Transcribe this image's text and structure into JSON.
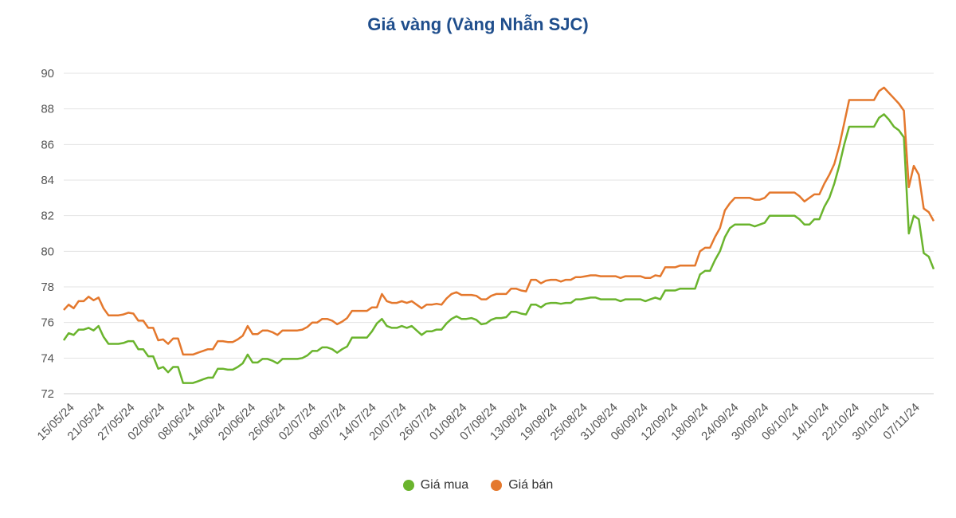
{
  "chart_data": {
    "type": "line",
    "title": "Giá vàng (Vàng Nhẫn SJC)",
    "xlabel": "",
    "ylabel": "",
    "ylim": [
      72,
      90
    ],
    "yticks": [
      72,
      74,
      76,
      78,
      80,
      82,
      84,
      86,
      88,
      90
    ],
    "grid": true,
    "legend_position": "bottom",
    "x_tick_labels": [
      "15/05/24",
      "21/05/24",
      "27/05/24",
      "02/06/24",
      "08/06/24",
      "14/06/24",
      "20/06/24",
      "26/06/24",
      "02/07/24",
      "08/07/24",
      "14/07/24",
      "20/07/24",
      "26/07/24",
      "01/08/24",
      "07/08/24",
      "13/08/24",
      "19/08/24",
      "25/08/24",
      "31/08/24",
      "06/09/24",
      "12/09/24",
      "18/09/24",
      "24/09/24",
      "30/09/24",
      "06/10/24",
      "14/10/24",
      "22/10/24",
      "30/10/24",
      "07/11/24"
    ],
    "series": [
      {
        "name": "Giá mua",
        "color": "#6ab42d",
        "values": [
          75.0,
          75.4,
          75.3,
          75.6,
          75.6,
          75.7,
          75.55,
          75.8,
          75.2,
          74.8,
          74.8,
          74.8,
          74.85,
          74.95,
          74.95,
          74.5,
          74.5,
          74.1,
          74.1,
          73.4,
          73.5,
          73.2,
          73.5,
          73.5,
          72.6,
          72.6,
          72.6,
          72.7,
          72.8,
          72.9,
          72.9,
          73.4,
          73.4,
          73.35,
          73.35,
          73.5,
          73.7,
          74.2,
          73.75,
          73.75,
          73.95,
          73.95,
          73.85,
          73.7,
          73.95,
          73.95,
          73.95,
          73.95,
          74.0,
          74.15,
          74.4,
          74.4,
          74.6,
          74.6,
          74.5,
          74.3,
          74.5,
          74.65,
          75.15,
          75.15,
          75.15,
          75.15,
          75.5,
          75.95,
          76.2,
          75.8,
          75.7,
          75.7,
          75.8,
          75.7,
          75.8,
          75.55,
          75.3,
          75.5,
          75.5,
          75.6,
          75.6,
          75.95,
          76.2,
          76.35,
          76.2,
          76.2,
          76.25,
          76.15,
          75.9,
          75.95,
          76.15,
          76.25,
          76.25,
          76.3,
          76.6,
          76.6,
          76.5,
          76.45,
          77.0,
          77.0,
          76.85,
          77.05,
          77.1,
          77.1,
          77.05,
          77.1,
          77.1,
          77.3,
          77.3,
          77.35,
          77.4,
          77.4,
          77.3,
          77.3,
          77.3,
          77.3,
          77.2,
          77.3,
          77.3,
          77.3,
          77.3,
          77.2,
          77.3,
          77.4,
          77.3,
          77.8,
          77.8,
          77.8,
          77.9,
          77.9,
          77.9,
          77.9,
          78.7,
          78.9,
          78.9,
          79.5,
          80.0,
          80.8,
          81.3,
          81.5,
          81.5,
          81.5,
          81.5,
          81.4,
          81.5,
          81.6,
          82.0,
          82.0,
          82.0,
          82.0,
          82.0,
          82.0,
          81.8,
          81.5,
          81.5,
          81.8,
          81.8,
          82.5,
          83.0,
          83.8,
          84.8,
          86.0,
          87.0,
          87.0,
          87.0,
          87.0,
          87.0,
          87.0,
          87.5,
          87.7,
          87.4,
          87.0,
          86.8,
          86.4,
          81.0,
          82.0,
          81.8,
          79.9,
          79.7,
          79.0
        ]
      },
      {
        "name": "Giá bán",
        "color": "#e4782d",
        "values": [
          76.7,
          77.0,
          76.8,
          77.2,
          77.2,
          77.45,
          77.25,
          77.4,
          76.8,
          76.4,
          76.4,
          76.4,
          76.45,
          76.55,
          76.5,
          76.1,
          76.1,
          75.7,
          75.7,
          75.0,
          75.05,
          74.8,
          75.1,
          75.1,
          74.2,
          74.2,
          74.2,
          74.3,
          74.4,
          74.5,
          74.5,
          74.95,
          74.95,
          74.9,
          74.9,
          75.05,
          75.25,
          75.8,
          75.35,
          75.35,
          75.55,
          75.55,
          75.45,
          75.3,
          75.55,
          75.55,
          75.55,
          75.55,
          75.6,
          75.75,
          76.0,
          76.0,
          76.2,
          76.2,
          76.1,
          75.9,
          76.05,
          76.25,
          76.65,
          76.65,
          76.65,
          76.65,
          76.85,
          76.85,
          77.6,
          77.2,
          77.1,
          77.1,
          77.2,
          77.1,
          77.2,
          77.0,
          76.8,
          77.0,
          77.0,
          77.05,
          77.0,
          77.35,
          77.6,
          77.7,
          77.55,
          77.55,
          77.55,
          77.5,
          77.3,
          77.3,
          77.5,
          77.6,
          77.6,
          77.6,
          77.9,
          77.9,
          77.8,
          77.75,
          78.4,
          78.4,
          78.2,
          78.35,
          78.4,
          78.4,
          78.3,
          78.4,
          78.4,
          78.55,
          78.55,
          78.6,
          78.65,
          78.65,
          78.6,
          78.6,
          78.6,
          78.6,
          78.5,
          78.6,
          78.6,
          78.6,
          78.6,
          78.5,
          78.5,
          78.65,
          78.6,
          79.1,
          79.1,
          79.1,
          79.2,
          79.2,
          79.2,
          79.2,
          80.0,
          80.2,
          80.2,
          80.8,
          81.3,
          82.3,
          82.7,
          83.0,
          83.0,
          83.0,
          83.0,
          82.9,
          82.9,
          83.0,
          83.3,
          83.3,
          83.3,
          83.3,
          83.3,
          83.3,
          83.1,
          82.8,
          83.0,
          83.2,
          83.2,
          83.8,
          84.3,
          84.9,
          85.9,
          87.2,
          88.5,
          88.5,
          88.5,
          88.5,
          88.5,
          88.5,
          89.0,
          89.2,
          88.9,
          88.6,
          88.3,
          87.9,
          83.6,
          84.8,
          84.3,
          82.4,
          82.2,
          81.7
        ]
      }
    ]
  }
}
